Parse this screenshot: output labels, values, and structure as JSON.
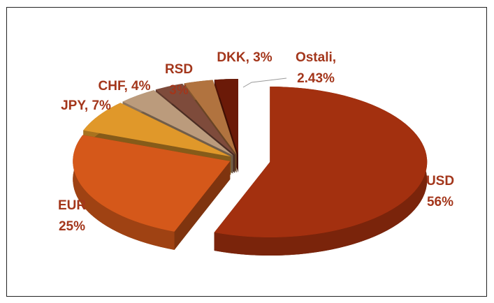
{
  "chart_data": {
    "type": "pie",
    "categories": [
      "USD",
      "EUR",
      "JPY",
      "CHF",
      "RSD",
      "DKK",
      "Ostali"
    ],
    "values": [
      56,
      25,
      7,
      4,
      3,
      3,
      2.43
    ],
    "value_labels": [
      [
        "USD",
        "56%"
      ],
      [
        "EUR",
        "25%"
      ],
      [
        "JPY, 7%"
      ],
      [
        "CHF, 4%"
      ],
      [
        "RSD",
        "3%"
      ],
      [
        "DKK, 3%"
      ],
      [
        "Ostali,",
        "2.43%"
      ]
    ],
    "colors": [
      "#a3300f",
      "#d5581a",
      "#e0982a",
      "#bb9b7c",
      "#7e4b3b",
      "#b1733f",
      "#6b1a08"
    ]
  }
}
